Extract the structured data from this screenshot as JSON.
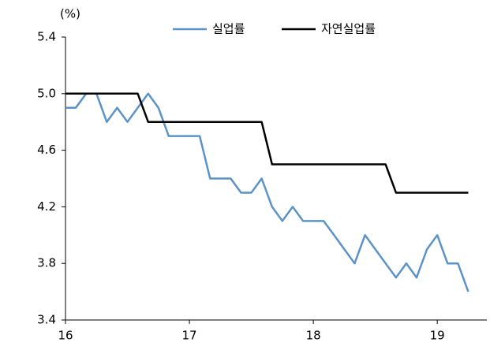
{
  "chart_data": {
    "type": "line",
    "unit_label": "(%)",
    "x": [
      16,
      16.083,
      16.167,
      16.25,
      16.333,
      16.417,
      16.5,
      16.583,
      16.667,
      16.75,
      16.833,
      16.917,
      17,
      17.083,
      17.167,
      17.25,
      17.333,
      17.417,
      17.5,
      17.583,
      17.667,
      17.75,
      17.833,
      17.917,
      18,
      18.083,
      18.167,
      18.25,
      18.333,
      18.417,
      18.5,
      18.583,
      18.667,
      18.75,
      18.833,
      18.917,
      19,
      19.083,
      19.167,
      19.25
    ],
    "series": [
      {
        "name": "실업률",
        "color": "#5b93c7",
        "values": [
          4.9,
          4.9,
          5.0,
          5.0,
          4.8,
          4.9,
          4.8,
          4.9,
          5.0,
          4.9,
          4.7,
          4.7,
          4.7,
          4.7,
          4.4,
          4.4,
          4.4,
          4.3,
          4.3,
          4.4,
          4.2,
          4.1,
          4.2,
          4.1,
          4.1,
          4.1,
          4.0,
          3.9,
          3.8,
          4.0,
          3.9,
          3.8,
          3.7,
          3.8,
          3.7,
          3.9,
          4.0,
          3.8,
          3.8,
          3.6
        ]
      },
      {
        "name": "자연실업률",
        "color": "#000000",
        "values": [
          5.0,
          5.0,
          5.0,
          5.0,
          5.0,
          5.0,
          5.0,
          5.0,
          4.8,
          4.8,
          4.8,
          4.8,
          4.8,
          4.8,
          4.8,
          4.8,
          4.8,
          4.8,
          4.8,
          4.8,
          4.5,
          4.5,
          4.5,
          4.5,
          4.5,
          4.5,
          4.5,
          4.5,
          4.5,
          4.5,
          4.5,
          4.5,
          4.3,
          4.3,
          4.3,
          4.3,
          4.3,
          4.3,
          4.3,
          4.3
        ]
      }
    ],
    "xlim": [
      16,
      19.4
    ],
    "xticks": [
      16,
      17,
      18,
      19
    ],
    "ylim": [
      3.4,
      5.4
    ],
    "yticks": [
      {
        "value": 3.4,
        "label": "3.4"
      },
      {
        "value": 3.8,
        "label": "3.8"
      },
      {
        "value": 4.2,
        "label": "4.2"
      },
      {
        "value": 4.6,
        "label": "4.6"
      },
      {
        "value": 5.0,
        "label": "5.0"
      },
      {
        "value": 5.4,
        "label": "5.4"
      }
    ],
    "legend": "top"
  }
}
